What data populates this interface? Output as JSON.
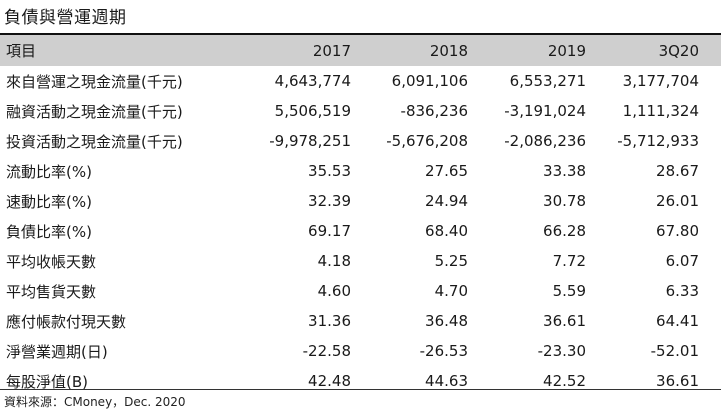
{
  "title": "負債與營運週期",
  "table": {
    "header": [
      "項目",
      "2017",
      "2018",
      "2019",
      "3Q20"
    ],
    "rows": [
      [
        "來自營運之現金流量(千元)",
        "4,643,774",
        "6,091,106",
        "6,553,271",
        "3,177,704"
      ],
      [
        "融資活動之現金流量(千元)",
        "5,506,519",
        "-836,236",
        "-3,191,024",
        "1,111,324"
      ],
      [
        "投資活動之現金流量(千元)",
        "-9,978,251",
        "-5,676,208",
        "-2,086,236",
        "-5,712,933"
      ],
      [
        "流動比率(%)",
        "35.53",
        "27.65",
        "33.38",
        "28.67"
      ],
      [
        "速動比率(%)",
        "32.39",
        "24.94",
        "30.78",
        "26.01"
      ],
      [
        "負債比率(%)",
        "69.17",
        "68.40",
        "66.28",
        "67.80"
      ],
      [
        "平均收帳天數",
        "4.18",
        "5.25",
        "7.72",
        "6.07"
      ],
      [
        "平均售貨天數",
        "4.60",
        "4.70",
        "5.59",
        "6.33"
      ],
      [
        "應付帳款付現天數",
        "31.36",
        "36.48",
        "36.61",
        "64.41"
      ],
      [
        "淨營業週期(日)",
        "-22.58",
        "-26.53",
        "-23.30",
        "-52.01"
      ],
      [
        "每股淨值(B)",
        "42.48",
        "44.63",
        "42.52",
        "36.61"
      ]
    ]
  },
  "source": "資料來源：CMoney，Dec. 2020",
  "colors": {
    "header_bg": "#cfcfcf",
    "rule": "#111111",
    "text": "#1a1a1a"
  }
}
